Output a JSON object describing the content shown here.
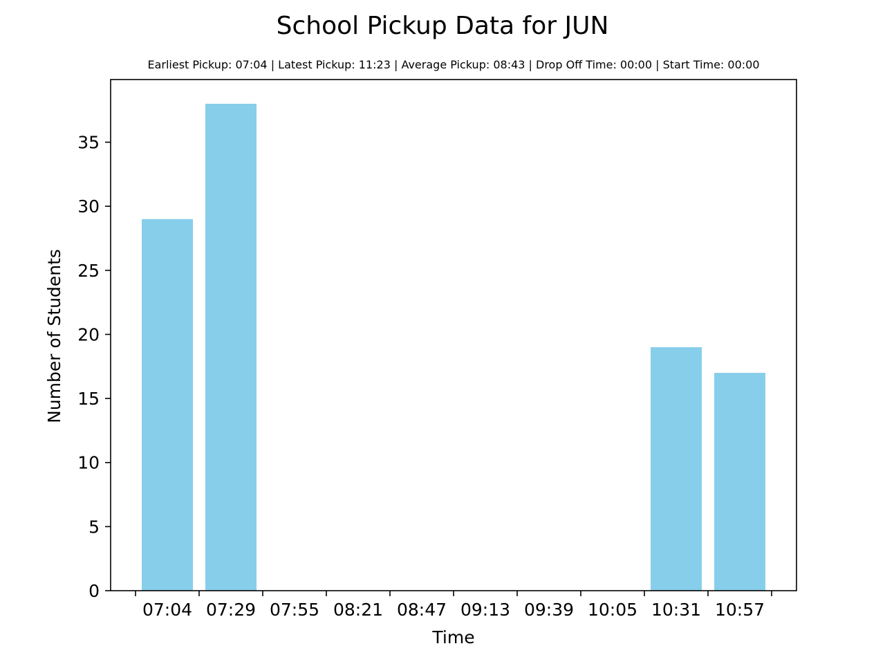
{
  "chart_data": {
    "type": "bar",
    "title": "School Pickup Data for JUN",
    "subtitle": "Earliest Pickup: 07:04 | Latest Pickup: 11:23 | Average Pickup: 08:43 | Drop Off Time: 00:00 | Start Time: 00:00",
    "xlabel": "Time",
    "ylabel": "Number of Students",
    "categories": [
      "07:04",
      "07:29",
      "07:55",
      "08:21",
      "08:47",
      "09:13",
      "09:39",
      "10:05",
      "10:31",
      "10:57"
    ],
    "values": [
      29,
      38,
      0,
      0,
      0,
      0,
      0,
      0,
      19,
      17
    ],
    "ylim": [
      0,
      40
    ],
    "yticks": [
      0,
      5,
      10,
      15,
      20,
      25,
      30,
      35
    ],
    "bar_color": "#87ceeb",
    "grid": false,
    "legend": "none"
  }
}
